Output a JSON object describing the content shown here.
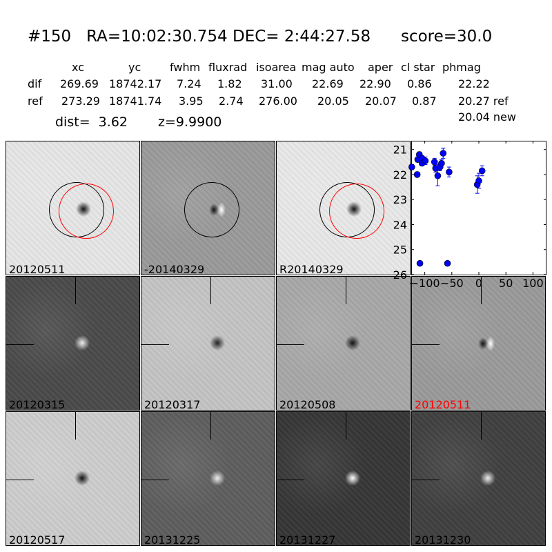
{
  "title": "#150   RA=10:02:30.754 DEC= 2:44:27.58      score=30.0",
  "table": {
    "headers": [
      "xc",
      "yc",
      "fwhm",
      "fluxrad",
      "isoarea",
      "mag auto",
      "aper",
      "cl star",
      "phmag"
    ],
    "rows": [
      {
        "name": "dif",
        "values": [
          "269.69",
          "18742.17",
          "7.24",
          "1.82",
          "31.00",
          "22.69",
          "22.90",
          "0.86",
          "22.22"
        ]
      },
      {
        "name": "ref",
        "values": [
          "273.29",
          "18741.74",
          "3.95",
          "2.74",
          "276.00",
          "20.05",
          "20.07",
          "0.87",
          "20.27 ref"
        ]
      }
    ],
    "extra": "20.04 new",
    "dist": "dist=  3.62",
    "z": "z=9.9900"
  },
  "panels": [
    {
      "label": "20120511",
      "bg": "#e6e6e6",
      "spot": "#111",
      "circles": true
    },
    {
      "label": "-20140329",
      "bg": "#9a9a9a",
      "spot": "dipole",
      "circles": true
    },
    {
      "label": "R20140329",
      "bg": "#e8e8e8",
      "spot": "#111",
      "circles": true
    },
    {
      "label": "20120315",
      "bg": "#4a4a4a",
      "spot": "#eee"
    },
    {
      "label": "20120317",
      "bg": "#c4c4c4",
      "spot": "#222"
    },
    {
      "label": "20120508",
      "bg": "#a8a8a8",
      "spot": "#111"
    },
    {
      "label": "20120511",
      "bg": "#9a9a9a",
      "spot": "dipole",
      "label_color": "#ff0000"
    },
    {
      "label": "20120517",
      "bg": "#cdcdcd",
      "spot": "#111"
    },
    {
      "label": "20131225",
      "bg": "#5e5e5e",
      "spot": "#eee"
    },
    {
      "label": "20131227",
      "bg": "#363636",
      "spot": "#fff"
    },
    {
      "label": "20131230",
      "bg": "#404040",
      "spot": "#eee"
    }
  ],
  "chart_data": {
    "type": "scatter",
    "title": "",
    "xlabel": "",
    "ylabel": "",
    "xlim": [
      -125,
      125
    ],
    "ylim": [
      26,
      20.65
    ],
    "y_inverted": true,
    "xticks": [
      -100,
      -50,
      0,
      50,
      100
    ],
    "yticks": [
      21,
      22,
      23,
      24,
      25,
      26
    ],
    "color": "#0000ff",
    "points": [
      {
        "x": -124,
        "y": 21.7,
        "yerr": 0.1
      },
      {
        "x": -114,
        "y": 22.0,
        "yerr": 0.1
      },
      {
        "x": -113,
        "y": 21.4,
        "yerr": 0.1
      },
      {
        "x": -110,
        "y": 21.2,
        "yerr": 0.1
      },
      {
        "x": -105,
        "y": 21.35,
        "yerr": 0.1
      },
      {
        "x": -105,
        "y": 21.55,
        "yerr": 0.1
      },
      {
        "x": -99,
        "y": 21.45,
        "yerr": 0.15
      },
      {
        "x": -82,
        "y": 21.5,
        "yerr": 0.15
      },
      {
        "x": -80,
        "y": 21.75,
        "yerr": 0.15
      },
      {
        "x": -76,
        "y": 22.05,
        "yerr": 0.4
      },
      {
        "x": -72,
        "y": 21.7,
        "yerr": 0.15
      },
      {
        "x": -69,
        "y": 21.55,
        "yerr": 0.15
      },
      {
        "x": -66,
        "y": 21.15,
        "yerr": 0.2
      },
      {
        "x": -55,
        "y": 21.9,
        "yerr": 0.2
      },
      {
        "x": -3,
        "y": 22.4,
        "yerr": 0.35
      },
      {
        "x": 0,
        "y": 22.25,
        "yerr": 0.3
      },
      {
        "x": 6,
        "y": 21.85,
        "yerr": 0.2
      },
      {
        "x": -109,
        "y": 25.55,
        "yerr": 0.05
      },
      {
        "x": -58,
        "y": 25.55,
        "yerr": 0.05
      }
    ]
  }
}
